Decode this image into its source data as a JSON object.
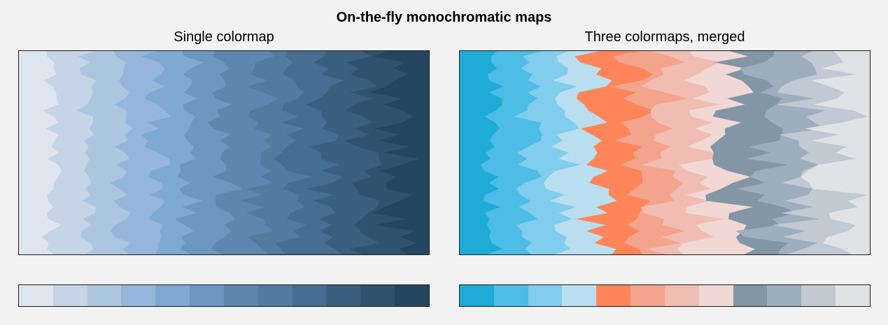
{
  "figure": {
    "suptitle": "On-the-fly monochromatic maps"
  },
  "chart_data": [
    {
      "type": "area",
      "title": "Single colormap",
      "xlabel": "",
      "ylabel": "",
      "levels": 12,
      "grid": false,
      "colors": [
        "#dfe5ef",
        "#c5d4e6",
        "#adc6e0",
        "#95b6da",
        "#7ea9d2",
        "#6b97c0",
        "#5d87ae",
        "#517b9f",
        "#456e90",
        "#3a5f7f",
        "#2f526f",
        "#244660"
      ]
    },
    {
      "type": "area",
      "title": "Three colormaps, merged",
      "xlabel": "",
      "ylabel": "",
      "levels": 12,
      "grid": false,
      "colors": [
        "#1eacd6",
        "#4dbce6",
        "#80cdee",
        "#b9def0",
        "#fe8559",
        "#f4a38c",
        "#f1bdb2",
        "#f2d8d4",
        "#8396a6",
        "#9daebe",
        "#c1c9d2",
        "#dfe3e6"
      ]
    }
  ]
}
